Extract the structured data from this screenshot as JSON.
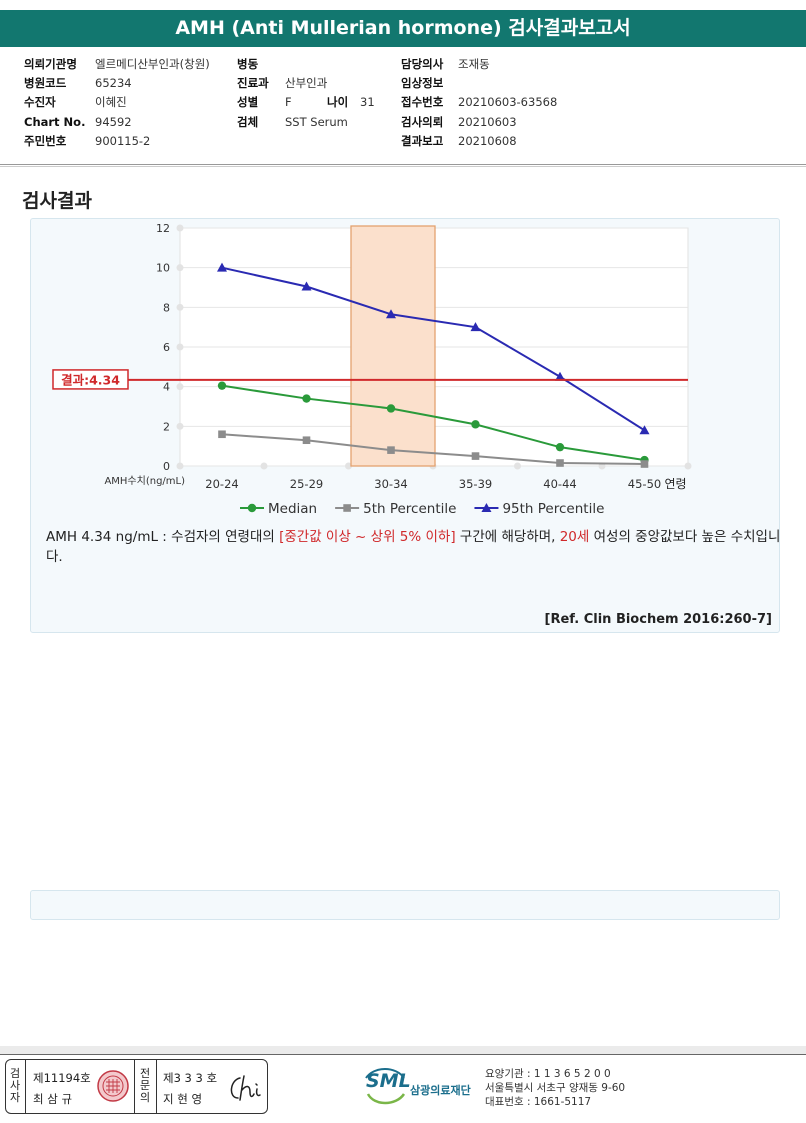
{
  "title": "AMH (Anti Mullerian hormone) 검사결과보고서",
  "info": {
    "institution_label": "의뢰기관명",
    "institution": "엘르메디산부인과(창원)",
    "ward_label": "병동",
    "ward": "",
    "doctor_label": "담당의사",
    "doctor": "조재동",
    "hospital_code_label": "병원코드",
    "hospital_code": "65234",
    "department_label": "진료과",
    "department": "산부인과",
    "clinical_label": "임상정보",
    "clinical": "",
    "patient_label": "수진자",
    "patient": "이혜진",
    "sex_label": "성별",
    "sex": "F",
    "age_label": "나이",
    "age": "31",
    "receipt_label": "접수번호",
    "receipt": "20210603-63568",
    "chart_label": "Chart No.",
    "chart": "94592",
    "specimen_label": "검체",
    "specimen": "SST Serum",
    "request_label": "검사의뢰",
    "request": "20210603",
    "id_label": "주민번호",
    "id": "900115-2",
    "report_label": "결과보고",
    "report": "20210608"
  },
  "section_title": "검사결과",
  "chart_data": {
    "type": "line",
    "categories": [
      "20-24",
      "25-29",
      "30-34",
      "35-39",
      "40-44",
      "45-50"
    ],
    "x_unit_label": "연령",
    "ylabel": "AMH수치(ng/mL)",
    "ylim": [
      0,
      12
    ],
    "y_ticks": [
      "0",
      "2",
      "4",
      "6",
      "8",
      "10",
      "12"
    ],
    "grid": true,
    "legend_position": "bottom",
    "highlight_category": "30-34",
    "result_value": 4.34,
    "result_label": "결과:4.34",
    "series": [
      {
        "name": "Median",
        "values": [
          4.05,
          3.4,
          2.9,
          2.1,
          0.95,
          0.3
        ],
        "color": "#2a9a3a",
        "marker": "circle"
      },
      {
        "name": "5th Percentile",
        "values": [
          1.6,
          1.3,
          0.8,
          0.5,
          0.15,
          0.1
        ],
        "color": "#8c8c8c",
        "marker": "square"
      },
      {
        "name": "95th Percentile",
        "values": [
          10.0,
          9.05,
          7.65,
          7.0,
          4.5,
          1.8
        ],
        "color": "#2a2ab2",
        "marker": "triangle"
      }
    ],
    "result_color": "#d0292b",
    "highlight_color": "#fbe0cc"
  },
  "interpretation": {
    "part1": "AMH  4.34 ng/mL : 수검자의 연령대의 ",
    "range": "[중간값 이상 ~ 상위 5% 이하]",
    "part2": "  구간에 해당하며, ",
    "age": "20세",
    "part3": " 여성의 중앙값보다 높은 수치입니다."
  },
  "reference": "[Ref. Clin Biochem 2016:260-7]",
  "footer": {
    "examiner_vertical": "검사자",
    "examiner_no": "제11194호",
    "examiner_name": "최 삼 규",
    "specialist_vertical": "전문의",
    "specialist_no": "제3 3 3 호",
    "specialist_name": "지 현 영",
    "lab_logo": "SML",
    "lab_name": "삼광의료재단",
    "lab_code": "요양기관 : 1 1 3 6 5 2 0 0",
    "lab_address": "서울특별시 서초구 양재동 9-60",
    "lab_phone": "대표번호 : 1661-5117"
  }
}
